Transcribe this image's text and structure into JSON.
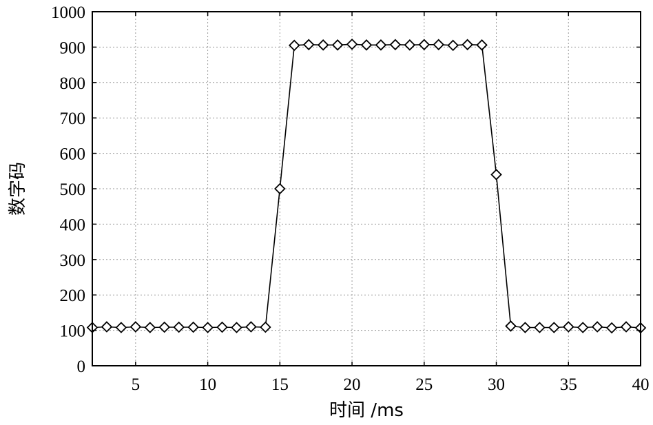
{
  "chart_data": {
    "type": "line",
    "xlabel": "时间 /ms",
    "ylabel": "数字码",
    "xlim": [
      2,
      40
    ],
    "ylim": [
      0,
      1000
    ],
    "x_ticks": [
      5,
      10,
      15,
      20,
      25,
      30,
      35,
      40
    ],
    "y_ticks": [
      0,
      100,
      200,
      300,
      400,
      500,
      600,
      700,
      800,
      900,
      1000
    ],
    "grid": true,
    "series": [
      {
        "marker": "diamond",
        "x": [
          2,
          3,
          4,
          5,
          6,
          7,
          8,
          9,
          10,
          11,
          12,
          13,
          14,
          15,
          16,
          17,
          18,
          19,
          20,
          21,
          22,
          23,
          24,
          25,
          26,
          27,
          28,
          29,
          30,
          31,
          32,
          33,
          34,
          35,
          36,
          37,
          38,
          39,
          40
        ],
        "y": [
          108,
          110,
          108,
          110,
          108,
          109,
          109,
          109,
          108,
          109,
          108,
          110,
          109,
          500,
          905,
          907,
          906,
          906,
          908,
          906,
          906,
          907,
          906,
          907,
          907,
          905,
          907,
          906,
          540,
          112,
          108,
          108,
          108,
          110,
          108,
          110,
          107,
          110,
          107
        ]
      }
    ]
  }
}
